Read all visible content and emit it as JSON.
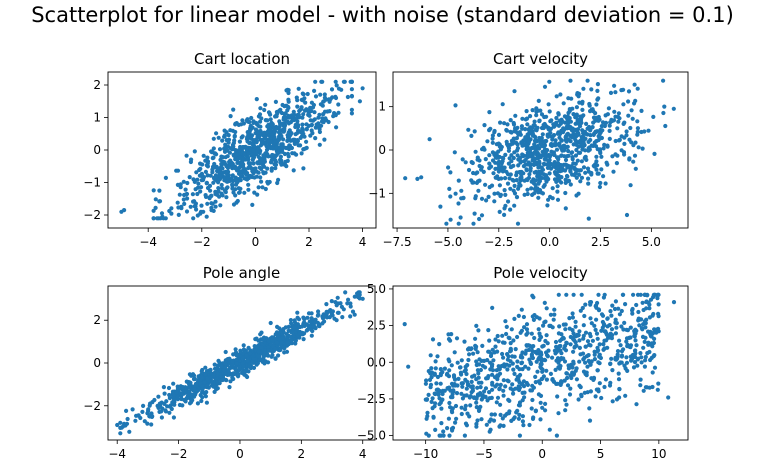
{
  "suptitle": "Scatterplot for linear model - with noise (standard deviation = 0.1)",
  "colors": {
    "points": "#1f77b4",
    "axes": "#000000",
    "background": "#ffffff"
  },
  "chart_data": [
    {
      "type": "scatter",
      "title": "Cart location",
      "xlim": [
        -5.5,
        4.5
      ],
      "ylim": [
        -2.4,
        2.4
      ],
      "xticks": [
        -4,
        -2,
        0,
        2,
        4
      ],
      "yticks": [
        -2,
        -1,
        0,
        1,
        2
      ],
      "xtick_labels": [
        "−4",
        "−2",
        "0",
        "2",
        "4"
      ],
      "ytick_labels": [
        "−2",
        "−1",
        "0",
        "1",
        "2"
      ],
      "points": {
        "generated": true,
        "n": 900,
        "x_dist": "normal(0, 1.6)",
        "y_model": "0.5 * x + noise, clipped to [-2.1, 2.1]",
        "outliers": [
          [
            -5.0,
            -1.9
          ],
          [
            -4.9,
            -1.85
          ],
          [
            4.0,
            1.9
          ],
          [
            3.9,
            1.5
          ]
        ]
      },
      "grid": false
    },
    {
      "type": "scatter",
      "title": "Cart velocity",
      "xlim": [
        -7.7,
        6.8
      ],
      "ylim": [
        -1.8,
        1.8
      ],
      "xticks": [
        -7.5,
        -5.0,
        -2.5,
        0.0,
        2.5,
        5.0
      ],
      "yticks": [
        -1,
        0,
        1
      ],
      "xtick_labels": [
        "−7.5",
        "−5.0",
        "−2.5",
        "0.0",
        "2.5",
        "5.0"
      ],
      "ytick_labels": [
        "−1",
        "0",
        "1"
      ],
      "points": {
        "generated": true,
        "n": 900,
        "x_dist": "normal(0, 2)",
        "y_model": "0.12 * x + noise, clipped to [-1.7, 1.6]",
        "outliers": [
          [
            -7.1,
            -0.65
          ],
          [
            6.1,
            0.95
          ],
          [
            -5.9,
            0.25
          ],
          [
            3.8,
            -1.5
          ]
        ]
      },
      "grid": false
    },
    {
      "type": "scatter",
      "title": "Pole angle",
      "xlim": [
        -4.3,
        4.4
      ],
      "ylim": [
        -3.6,
        3.6
      ],
      "xticks": [
        -4,
        -2,
        0,
        2,
        4
      ],
      "yticks": [
        -2,
        0,
        2
      ],
      "xtick_labels": [
        "−4",
        "−2",
        "0",
        "2",
        "4"
      ],
      "ytick_labels": [
        "−2",
        "0",
        "2"
      ],
      "points": {
        "generated": true,
        "n": 900,
        "x_dist": "normal(0, 1.6), clipped to [-4, 4]",
        "y_model": "0.78 * x + noise, clipped to [-3.3, 3.3]",
        "outliers": [
          [
            -4.0,
            -2.9
          ],
          [
            4.0,
            3.0
          ]
        ]
      },
      "grid": false
    },
    {
      "type": "scatter",
      "title": "Pole velocity",
      "xlim": [
        -12.8,
        12.5
      ],
      "ylim": [
        -5.3,
        5.2
      ],
      "xticks": [
        -10,
        -5,
        0,
        5,
        10
      ],
      "yticks": [
        -5.0,
        -2.5,
        0.0,
        2.5,
        5.0
      ],
      "xtick_labels": [
        "−10",
        "−5",
        "0",
        "5",
        "10"
      ],
      "ytick_labels": [
        "−5.0",
        "−2.5",
        "0.0",
        "2.5",
        "5.0"
      ],
      "points": {
        "generated": true,
        "n": 900,
        "x_dist": "uniform(-10, 10)",
        "y_model": "0.22 * x + noise, clipped to [-5.0, 4.6]",
        "outliers": [
          [
            -11.8,
            2.6
          ],
          [
            11.3,
            4.1
          ],
          [
            -11.5,
            -0.3
          ],
          [
            10.8,
            -2.4
          ]
        ]
      },
      "grid": false
    }
  ]
}
